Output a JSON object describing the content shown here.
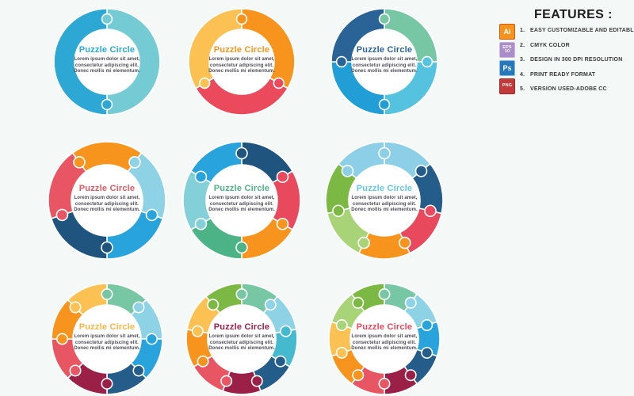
{
  "background": "#f4f8f6",
  "puzzle": {
    "title": "Puzzle Circle",
    "body_lines": [
      "Lorem ipsum dolor sit amet,",
      "consectetur adipiscing elit.",
      "Donec mollis mi elementum."
    ],
    "body_color": "#4b4b55",
    "circles": [
      {
        "name": "puzzle-circle-2-pieces",
        "pieces": 2,
        "start": 0,
        "colors": [
          "#74cbd3",
          "#2da8d4"
        ],
        "title_color": "#29a8d6"
      },
      {
        "name": "puzzle-circle-3-pieces",
        "pieces": 3,
        "start": 0,
        "colors": [
          "#f7941e",
          "#ea4a5c",
          "#fbc152"
        ],
        "title_color": "#f7941e"
      },
      {
        "name": "puzzle-circle-4-pieces",
        "pieces": 4,
        "start": 0,
        "colors": [
          "#77c7a4",
          "#55c3df",
          "#219ed6",
          "#2a6496"
        ],
        "title_color": "#2a6496"
      },
      {
        "name": "puzzle-circle-5-pieces",
        "pieces": 5,
        "start": -36,
        "colors": [
          "#f7941e",
          "#8ed2e6",
          "#29a3dc",
          "#1f547f",
          "#e95663"
        ],
        "title_color": "#e95663"
      },
      {
        "name": "puzzle-circle-6-pieces",
        "pieces": 6,
        "start": 0,
        "colors": [
          "#1f547f",
          "#e9495c",
          "#f7941e",
          "#4cb386",
          "#84d0d9",
          "#29a3dc"
        ],
        "title_color": "#4cb386"
      },
      {
        "name": "puzzle-circle-7-pieces",
        "pieces": 7,
        "start": 0,
        "colors": [
          "#8ccfe6",
          "#245d8a",
          "#e9495c",
          "#f7941e",
          "#a9d377",
          "#7cb944",
          "#8ccfe6"
        ],
        "title_color": "#63c7e8"
      },
      {
        "name": "puzzle-circle-8-pieces",
        "pieces": 8,
        "start": 0,
        "colors": [
          "#77c7a4",
          "#8ed2e6",
          "#29a3dc",
          "#245d8a",
          "#9b2048",
          "#e95663",
          "#f7941e",
          "#fbc152"
        ],
        "title_color": "#f9b545"
      },
      {
        "name": "puzzle-circle-9-pieces",
        "pieces": 9,
        "start": 0,
        "colors": [
          "#77c7a4",
          "#8ed2e6",
          "#45bace",
          "#245d8a",
          "#9b2048",
          "#e95663",
          "#f7941e",
          "#fbc152",
          "#7cb944"
        ],
        "title_color": "#9b2048"
      },
      {
        "name": "puzzle-circle-10-pieces",
        "pieces": 10,
        "start": 0,
        "colors": [
          "#77c7a4",
          "#8ed2e6",
          "#29a3dc",
          "#245d8a",
          "#9b2048",
          "#e95663",
          "#f7941e",
          "#fbc152",
          "#a9d377",
          "#7cb944"
        ],
        "title_color": "#e9495c"
      }
    ]
  },
  "features": {
    "title": "FEATURES :",
    "title_color": "#1d1d1f",
    "text_color": "#3b3b3d",
    "items": [
      {
        "num": "1.",
        "label": "EASY CUSTOMIZABLE AND EDITABLE"
      },
      {
        "num": "2.",
        "label": "CMYK COLOR"
      },
      {
        "num": "3.",
        "label": "DESIGN IN 300 DPI RESOLUTION"
      },
      {
        "num": "4.",
        "label": "PRINT READY FORMAT"
      },
      {
        "num": "5.",
        "label": "VERSION USED-ADOBE CC"
      }
    ],
    "icons": [
      {
        "name": "adobe-illustrator-icon",
        "lines": [
          "Ai"
        ],
        "bg": "#f6931e",
        "border": "#c35f17",
        "big": true
      },
      {
        "name": "eps-10-icon",
        "lines": [
          "EPS",
          "10"
        ],
        "bg": "#ab8ec9",
        "border": "#cbb6e0",
        "big": false
      },
      {
        "name": "photoshop-icon",
        "lines": [
          "Ps"
        ],
        "bg": "#2678bd",
        "border": "#8ab8de",
        "big": true
      },
      {
        "name": "png-icon",
        "lines": [
          "PNG"
        ],
        "bg": "#c23a3a",
        "border": "#a02828",
        "big": false
      }
    ]
  }
}
